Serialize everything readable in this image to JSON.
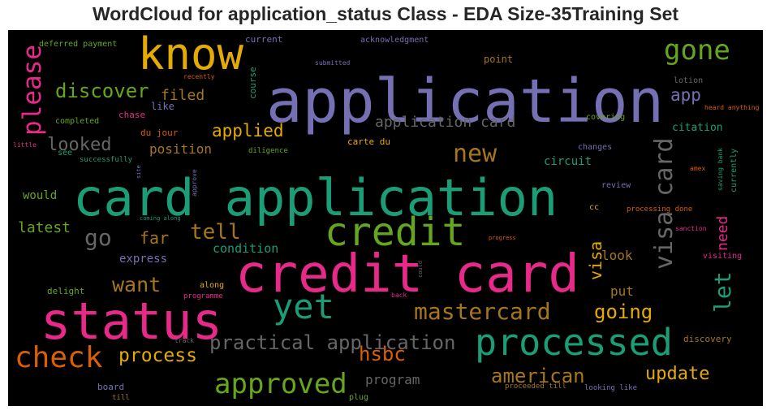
{
  "title": "WordCloud for application_status Class - EDA Size-35Training Set",
  "chart_data": {
    "type": "wordcloud",
    "title": "WordCloud for application_status Class - EDA Size-35Training Set",
    "background": "#000000",
    "words": [
      {
        "text": "application",
        "color": "#7570b3"
      },
      {
        "text": "card application",
        "color": "#1b9e77"
      },
      {
        "text": "credit card",
        "color": "#e7298a"
      },
      {
        "text": "status",
        "color": "#e7298a"
      },
      {
        "text": "know",
        "color": "#e6ab02"
      },
      {
        "text": "credit",
        "color": "#66a61e"
      },
      {
        "text": "processed",
        "color": "#1b9e77"
      },
      {
        "text": "yet",
        "color": "#1b9e77"
      },
      {
        "text": "check",
        "color": "#d95f02"
      },
      {
        "text": "approved",
        "color": "#66a61e"
      },
      {
        "text": "visa card",
        "color": "#666666"
      },
      {
        "text": "gone",
        "color": "#66a61e"
      },
      {
        "text": "please",
        "color": "#e7298a"
      },
      {
        "text": "new",
        "color": "#a6761d"
      },
      {
        "text": "mastercard",
        "color": "#a6761d"
      },
      {
        "text": "practical application",
        "color": "#666666"
      },
      {
        "text": "discover",
        "color": "#66a61e"
      },
      {
        "text": "go",
        "color": "#666666"
      },
      {
        "text": "tell",
        "color": "#a6761d"
      },
      {
        "text": "want",
        "color": "#a6761d"
      },
      {
        "text": "american",
        "color": "#a6761d"
      },
      {
        "text": "hsbc",
        "color": "#d95f02"
      },
      {
        "text": "process",
        "color": "#e6ab02"
      },
      {
        "text": "let",
        "color": "#1b9e77"
      },
      {
        "text": "going",
        "color": "#e6ab02"
      },
      {
        "text": "update",
        "color": "#e6ab02"
      },
      {
        "text": "looked",
        "color": "#666666"
      },
      {
        "text": "applied",
        "color": "#e6ab02"
      },
      {
        "text": "application card",
        "color": "#666666"
      },
      {
        "text": "app",
        "color": "#7570b3"
      },
      {
        "text": "filed",
        "color": "#a6761d"
      },
      {
        "text": "latest",
        "color": "#66a61e"
      },
      {
        "text": "far",
        "color": "#a6761d"
      },
      {
        "text": "visa",
        "color": "#e6ab02"
      },
      {
        "text": "need",
        "color": "#e7298a"
      },
      {
        "text": "position",
        "color": "#a6761d"
      },
      {
        "text": "program",
        "color": "#666666"
      },
      {
        "text": "condition",
        "color": "#1b9e77"
      },
      {
        "text": "express",
        "color": "#7570b3"
      },
      {
        "text": "look",
        "color": "#a6761d"
      },
      {
        "text": "put",
        "color": "#a6761d"
      },
      {
        "text": "would",
        "color": "#66a61e"
      },
      {
        "text": "circuit",
        "color": "#1b9e77"
      },
      {
        "text": "citation",
        "color": "#1b9e77"
      },
      {
        "text": "point",
        "color": "#a6761d"
      },
      {
        "text": "current",
        "color": "#7570b3"
      },
      {
        "text": "course",
        "color": "#1b9e77"
      },
      {
        "text": "like",
        "color": "#7570b3"
      },
      {
        "text": "chase",
        "color": "#e7298a"
      },
      {
        "text": "completed",
        "color": "#66a61e"
      },
      {
        "text": "du jour",
        "color": "#d95f02"
      },
      {
        "text": "carte du",
        "color": "#e6ab02"
      },
      {
        "text": "see",
        "color": "#1b9e77"
      },
      {
        "text": "deferred payment",
        "color": "#66a61e"
      },
      {
        "text": "acknowledgment",
        "color": "#7570b3"
      },
      {
        "text": "submitted",
        "color": "#7570b3"
      },
      {
        "text": "recently",
        "color": "#d95f02"
      },
      {
        "text": "lotion",
        "color": "#666666"
      },
      {
        "text": "heard anything",
        "color": "#d95f02"
      },
      {
        "text": "covering",
        "color": "#66a61e"
      },
      {
        "text": "changes",
        "color": "#7570b3"
      },
      {
        "text": "review",
        "color": "#7570b3"
      },
      {
        "text": "cc",
        "color": "#e6ab02"
      },
      {
        "text": "processing done",
        "color": "#d95f02"
      },
      {
        "text": "sanction",
        "color": "#e7298a"
      },
      {
        "text": "visiting",
        "color": "#e7298a"
      },
      {
        "text": "progress",
        "color": "#d95f02"
      },
      {
        "text": "currently",
        "color": "#1b9e77"
      },
      {
        "text": "saving bank",
        "color": "#1b9e77"
      },
      {
        "text": "amex",
        "color": "#d95f02"
      },
      {
        "text": "discovery",
        "color": "#a6761d"
      },
      {
        "text": "delight",
        "color": "#66a61e"
      },
      {
        "text": "along",
        "color": "#e6ab02"
      },
      {
        "text": "programme",
        "color": "#e7298a"
      },
      {
        "text": "back",
        "color": "#e7298a"
      },
      {
        "text": "could",
        "color": "#666666"
      },
      {
        "text": "track",
        "color": "#666666"
      },
      {
        "text": "board",
        "color": "#7570b3"
      },
      {
        "text": "till",
        "color": "#a6761d"
      },
      {
        "text": "plug",
        "color": "#66a61e"
      },
      {
        "text": "proceeded till",
        "color": "#a6761d"
      },
      {
        "text": "looking like",
        "color": "#7570b3"
      },
      {
        "text": "successfully",
        "color": "#1b9e77"
      },
      {
        "text": "diligence",
        "color": "#66a61e"
      },
      {
        "text": "site",
        "color": "#7570b3"
      },
      {
        "text": "approve",
        "color": "#7570b3"
      },
      {
        "text": "coming along",
        "color": "#1b9e77"
      },
      {
        "text": "little",
        "color": "#e7298a"
      }
    ]
  }
}
